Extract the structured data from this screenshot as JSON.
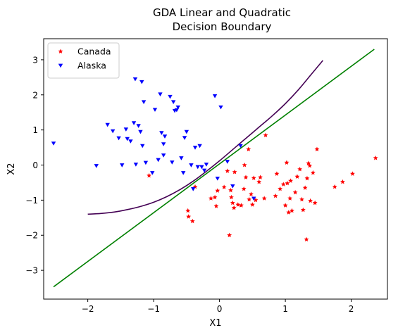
{
  "chart_data": {
    "type": "scatter",
    "title_lines": [
      "GDA Linear and Quadratic",
      "Decision Boundary"
    ],
    "xlabel": "X1",
    "ylabel": "X2",
    "xlim": [
      -2.67,
      2.55
    ],
    "ylim": [
      -3.82,
      3.6
    ],
    "xticks": [
      -2,
      -1,
      0,
      1,
      2
    ],
    "yticks": [
      -3,
      -2,
      -1,
      0,
      1,
      2,
      3
    ],
    "legend_position": "upper-left",
    "series": [
      {
        "name": "Canada",
        "marker": "star",
        "color": "#ff0000",
        "points": [
          [
            -1.07,
            -0.3
          ],
          [
            -0.48,
            -1.3
          ],
          [
            -0.47,
            -1.47
          ],
          [
            -0.41,
            -1.6
          ],
          [
            -0.37,
            -0.62
          ],
          [
            -0.13,
            -0.95
          ],
          [
            -0.07,
            -0.92
          ],
          [
            -0.05,
            -1.17
          ],
          [
            -0.03,
            -0.73
          ],
          [
            0.07,
            -0.63
          ],
          [
            0.12,
            -0.17
          ],
          [
            0.15,
            -2.0
          ],
          [
            0.17,
            -0.72
          ],
          [
            0.18,
            -0.92
          ],
          [
            0.2,
            -1.08
          ],
          [
            0.22,
            -1.22
          ],
          [
            0.23,
            -0.2
          ],
          [
            0.28,
            -1.13
          ],
          [
            0.33,
            -1.15
          ],
          [
            0.37,
            -0.68
          ],
          [
            0.38,
            0.0
          ],
          [
            0.4,
            -0.35
          ],
          [
            0.44,
            0.45
          ],
          [
            0.45,
            -0.98
          ],
          [
            0.48,
            -0.83
          ],
          [
            0.5,
            -1.13
          ],
          [
            0.52,
            -0.37
          ],
          [
            0.55,
            -1.0
          ],
          [
            0.6,
            -0.48
          ],
          [
            0.62,
            -0.35
          ],
          [
            0.68,
            -0.95
          ],
          [
            0.7,
            0.85
          ],
          [
            0.85,
            -0.88
          ],
          [
            0.87,
            -0.25
          ],
          [
            0.92,
            -0.68
          ],
          [
            0.97,
            -0.55
          ],
          [
            1.0,
            -1.15
          ],
          [
            1.02,
            0.07
          ],
          [
            1.03,
            -0.52
          ],
          [
            1.05,
            -1.35
          ],
          [
            1.07,
            -0.95
          ],
          [
            1.08,
            -0.45
          ],
          [
            1.1,
            -1.3
          ],
          [
            1.15,
            -0.78
          ],
          [
            1.18,
            -0.33
          ],
          [
            1.22,
            -0.12
          ],
          [
            1.25,
            -0.98
          ],
          [
            1.27,
            -1.28
          ],
          [
            1.3,
            -0.65
          ],
          [
            1.32,
            -2.12
          ],
          [
            1.33,
            -0.38
          ],
          [
            1.35,
            0.05
          ],
          [
            1.37,
            -0.02
          ],
          [
            1.38,
            -1.02
          ],
          [
            1.42,
            -0.22
          ],
          [
            1.45,
            -1.08
          ],
          [
            1.48,
            0.45
          ],
          [
            1.75,
            -0.62
          ],
          [
            1.87,
            -0.48
          ],
          [
            2.02,
            -0.25
          ],
          [
            2.37,
            0.2
          ]
        ]
      },
      {
        "name": "Alaska",
        "marker": "triangle-down",
        "color": "#0000ff",
        "points": [
          [
            -2.52,
            0.62
          ],
          [
            -1.87,
            -0.02
          ],
          [
            -1.7,
            1.15
          ],
          [
            -1.62,
            0.97
          ],
          [
            -1.53,
            0.77
          ],
          [
            -1.48,
            0.0
          ],
          [
            -1.42,
            1.02
          ],
          [
            -1.4,
            0.75
          ],
          [
            -1.35,
            0.68
          ],
          [
            -1.3,
            1.2
          ],
          [
            -1.28,
            2.45
          ],
          [
            -1.27,
            0.02
          ],
          [
            -1.23,
            1.12
          ],
          [
            -1.2,
            0.95
          ],
          [
            -1.18,
            2.37
          ],
          [
            -1.17,
            0.55
          ],
          [
            -1.15,
            1.8
          ],
          [
            -1.12,
            0.07
          ],
          [
            -1.02,
            -0.22
          ],
          [
            -0.98,
            1.58
          ],
          [
            -0.93,
            0.15
          ],
          [
            -0.9,
            2.02
          ],
          [
            -0.88,
            0.92
          ],
          [
            -0.85,
            0.28
          ],
          [
            -0.85,
            0.6
          ],
          [
            -0.83,
            0.82
          ],
          [
            -0.75,
            1.95
          ],
          [
            -0.72,
            0.08
          ],
          [
            -0.7,
            1.8
          ],
          [
            -0.68,
            1.55
          ],
          [
            -0.65,
            1.57
          ],
          [
            -0.63,
            1.65
          ],
          [
            -0.58,
            0.2
          ],
          [
            -0.55,
            -0.22
          ],
          [
            -0.53,
            0.78
          ],
          [
            -0.5,
            0.95
          ],
          [
            -0.43,
            0.0
          ],
          [
            -0.4,
            -0.68
          ],
          [
            -0.37,
            0.5
          ],
          [
            -0.33,
            -0.05
          ],
          [
            -0.3,
            0.55
          ],
          [
            -0.27,
            -0.05
          ],
          [
            -0.23,
            -0.15
          ],
          [
            -0.2,
            0.02
          ],
          [
            -0.07,
            1.97
          ],
          [
            -0.03,
            -0.38
          ],
          [
            0.02,
            1.65
          ],
          [
            0.12,
            0.1
          ],
          [
            0.2,
            -0.6
          ],
          [
            0.32,
            0.55
          ],
          [
            0.52,
            -0.95
          ]
        ]
      }
    ],
    "boundaries": [
      {
        "kind": "linear",
        "color": "#008000",
        "points": [
          [
            -2.52,
            -3.47
          ],
          [
            2.35,
            3.3
          ]
        ]
      },
      {
        "kind": "quadratic",
        "color": "#440154",
        "points": [
          [
            -2.0,
            -1.4
          ],
          [
            -1.8,
            -1.38
          ],
          [
            -1.6,
            -1.34
          ],
          [
            -1.4,
            -1.27
          ],
          [
            -1.2,
            -1.18
          ],
          [
            -1.0,
            -1.06
          ],
          [
            -0.8,
            -0.9
          ],
          [
            -0.6,
            -0.7
          ],
          [
            -0.4,
            -0.46
          ],
          [
            -0.2,
            -0.18
          ],
          [
            0.0,
            0.12
          ],
          [
            0.2,
            0.44
          ],
          [
            0.4,
            0.76
          ],
          [
            0.6,
            1.08
          ],
          [
            0.8,
            1.4
          ],
          [
            1.0,
            1.75
          ],
          [
            1.2,
            2.15
          ],
          [
            1.4,
            2.6
          ],
          [
            1.57,
            2.98
          ]
        ]
      }
    ]
  }
}
